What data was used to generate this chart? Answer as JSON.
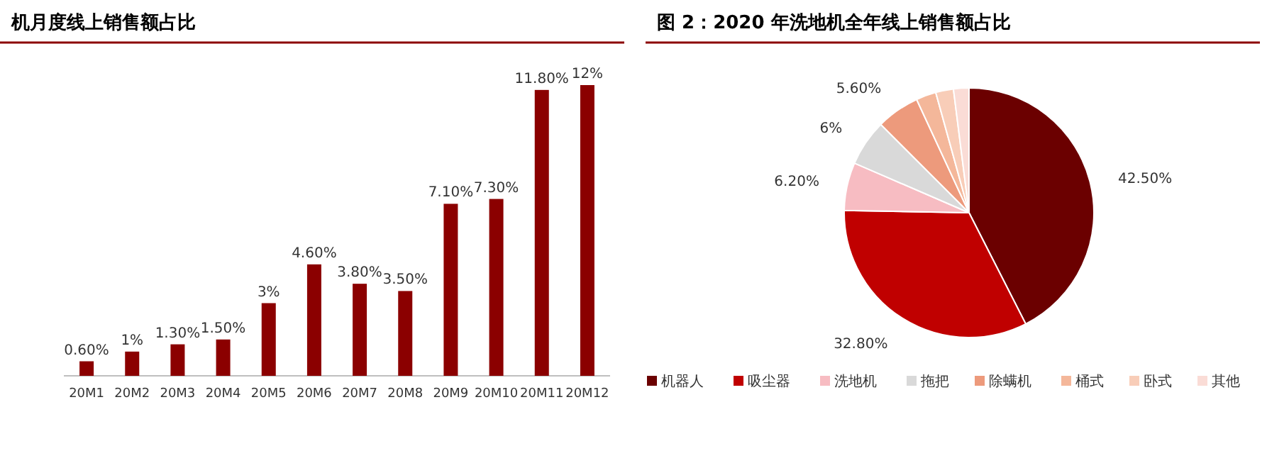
{
  "chart_data": [
    {
      "type": "bar",
      "title": "机月度线上销售额占比",
      "categories": [
        "20M1",
        "20M2",
        "20M3",
        "20M4",
        "20M5",
        "20M6",
        "20M7",
        "20M8",
        "20M9",
        "20M10",
        "20M11",
        "20M12"
      ],
      "values": [
        0.6,
        1,
        1.3,
        1.5,
        3,
        4.6,
        3.8,
        3.5,
        7.1,
        7.3,
        11.8,
        12
      ],
      "value_labels": [
        "0.60%",
        "1%",
        "1.30%",
        "1.50%",
        "3%",
        "4.60%",
        "3.80%",
        "3.50%",
        "7.10%",
        "7.30%",
        "11.80%",
        "12%"
      ],
      "color": "#8b0000",
      "tick_labels": "x",
      "grid": false
    },
    {
      "type": "pie",
      "title": "图 2：2020 年洗地机全年线上销售额占比",
      "categories": [
        "机器人",
        "吸尘器",
        "洗地机",
        "拖把",
        "除螨机",
        "桶式",
        "卧式",
        "其他"
      ],
      "values": [
        42.5,
        32.8,
        6.2,
        6,
        5.6,
        2.6,
        2.3,
        2.0
      ],
      "value_labels": [
        "42.50%",
        "32.80%",
        "6.20%",
        "6%",
        "5.60%",
        null,
        null,
        null
      ],
      "colors": [
        "#6b0000",
        "#c00000",
        "#f7bcc2",
        "#d9d9d9",
        "#ed9a7c",
        "#f4b79a",
        "#f8cdb8",
        "#fadcd6"
      ],
      "legend": "bottom"
    }
  ]
}
